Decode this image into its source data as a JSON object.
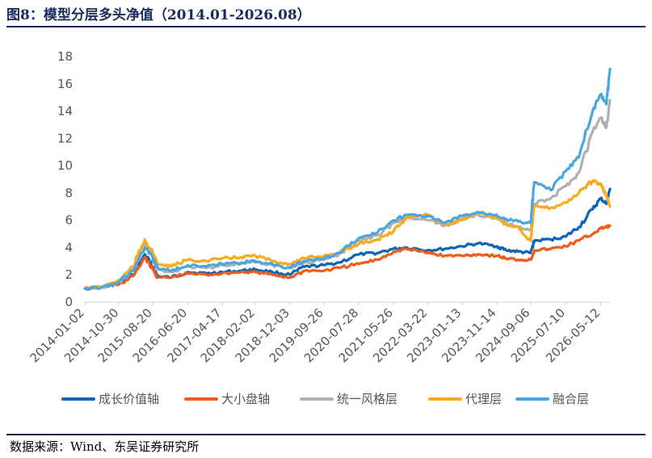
{
  "title": "图8：模型分层多头净值（2014.01-2026.08）",
  "source": "数据来源：Wind、东吴证券研究所",
  "chart_data": {
    "type": "line",
    "title": "图8：模型分层多头净值（2014.01-2026.08）",
    "xlabel": "",
    "ylabel": "",
    "ylim": [
      0,
      18
    ],
    "yticks": [
      0,
      2,
      4,
      6,
      8,
      10,
      12,
      14,
      16,
      18
    ],
    "x_tick_labels": [
      "2014-01-02",
      "2014-10-30",
      "2015-08-20",
      "2016-06-20",
      "2017-04-17",
      "2018-02-02",
      "2018-12-03",
      "2019-09-26",
      "2020-07-28",
      "2021-05-26",
      "2022-03-22",
      "2023-01-13",
      "2023-11-14",
      "2024-09-06",
      "2025-07-10",
      "2026-05-12"
    ],
    "x": [
      "2014-01-02",
      "2014-06-01",
      "2014-10-30",
      "2015-03-01",
      "2015-06-12",
      "2015-08-20",
      "2015-09-30",
      "2016-01-29",
      "2016-06-20",
      "2016-12-01",
      "2017-04-17",
      "2017-10-01",
      "2018-02-02",
      "2018-07-01",
      "2018-12-03",
      "2019-04-08",
      "2019-09-26",
      "2020-02-03",
      "2020-07-28",
      "2021-01-04",
      "2021-05-26",
      "2021-09-15",
      "2022-03-22",
      "2022-08-15",
      "2023-01-13",
      "2023-06-01",
      "2023-11-14",
      "2024-02-05",
      "2024-05-20",
      "2024-09-06",
      "2024-10-08",
      "2025-03-01",
      "2025-07-10",
      "2025-11-01",
      "2026-03-02",
      "2026-05-12",
      "2026-07-01",
      "2026-08-01"
    ],
    "series": [
      {
        "name": "成长价值轴",
        "color": "#0f64b4",
        "values": [
          1.0,
          1.1,
          1.4,
          2.0,
          3.5,
          2.6,
          1.9,
          1.8,
          2.2,
          2.1,
          2.2,
          2.3,
          2.4,
          2.2,
          2.0,
          2.6,
          2.7,
          2.9,
          3.5,
          3.6,
          3.9,
          4.0,
          3.8,
          3.9,
          4.1,
          4.3,
          4.1,
          3.8,
          3.7,
          3.6,
          4.5,
          4.6,
          4.8,
          5.5,
          6.8,
          7.6,
          7.2,
          8.3
        ]
      },
      {
        "name": "大小盘轴",
        "color": "#ef5b1a",
        "values": [
          1.0,
          1.1,
          1.3,
          1.9,
          3.3,
          2.4,
          1.8,
          1.8,
          2.1,
          2.0,
          2.1,
          2.2,
          2.2,
          2.0,
          1.8,
          2.3,
          2.3,
          2.5,
          2.8,
          3.1,
          3.7,
          3.9,
          3.6,
          3.4,
          3.4,
          3.5,
          3.4,
          3.2,
          3.1,
          3.1,
          3.8,
          3.9,
          4.1,
          4.5,
          5.0,
          5.4,
          5.5,
          5.6
        ]
      },
      {
        "name": "统一风格层",
        "color": "#b0b0b0",
        "values": [
          1.0,
          1.1,
          1.5,
          2.3,
          4.2,
          3.3,
          2.4,
          2.2,
          2.6,
          2.5,
          2.7,
          2.8,
          2.9,
          2.7,
          2.5,
          2.9,
          3.1,
          3.5,
          4.5,
          4.9,
          5.8,
          6.2,
          6.0,
          5.6,
          6.1,
          6.4,
          6.2,
          5.8,
          5.5,
          5.3,
          7.2,
          7.6,
          8.5,
          9.5,
          12.5,
          13.5,
          12.8,
          14.8
        ]
      },
      {
        "name": "代理层",
        "color": "#fbaa1c",
        "values": [
          1.0,
          1.1,
          1.6,
          2.6,
          4.6,
          3.6,
          2.8,
          2.6,
          3.1,
          3.0,
          3.2,
          3.3,
          3.4,
          3.0,
          2.8,
          3.2,
          3.4,
          3.6,
          4.3,
          4.6,
          5.2,
          6.2,
          6.4,
          5.7,
          6.0,
          6.5,
          6.2,
          5.7,
          5.5,
          4.5,
          7.0,
          6.9,
          7.3,
          8.0,
          8.9,
          8.6,
          7.8,
          7.0
        ]
      },
      {
        "name": "融合层",
        "color": "#4ba6e0",
        "values": [
          1.0,
          1.1,
          1.5,
          2.3,
          4.0,
          3.2,
          2.5,
          2.3,
          2.7,
          2.6,
          2.8,
          2.9,
          3.0,
          2.8,
          2.5,
          3.0,
          3.2,
          3.6,
          4.7,
          5.1,
          6.0,
          6.4,
          6.3,
          5.8,
          6.3,
          6.6,
          6.4,
          6.1,
          5.9,
          5.8,
          8.8,
          8.2,
          9.6,
          10.6,
          14.0,
          15.2,
          14.5,
          17.1
        ]
      }
    ]
  }
}
